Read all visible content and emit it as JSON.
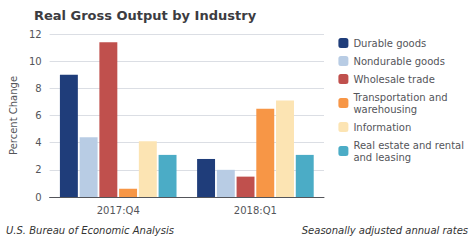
{
  "chart_data": {
    "type": "bar",
    "title": "Real Gross Output by Industry",
    "ylabel": "Percent Change",
    "categories": [
      "2017:Q4",
      "2018:Q1"
    ],
    "series": [
      {
        "name": "Durable goods",
        "color": "#1f3d7a",
        "values": [
          9.0,
          2.8
        ]
      },
      {
        "name": "Nondurable goods",
        "color": "#b8cce4",
        "values": [
          4.4,
          2.0
        ]
      },
      {
        "name": "Wholesale trade",
        "color": "#c0504d",
        "values": [
          11.4,
          1.5
        ]
      },
      {
        "name": "Transportation and\nwarehousing",
        "color": "#f79646",
        "values": [
          0.6,
          6.5
        ]
      },
      {
        "name": "Information",
        "color": "#fce4b3",
        "values": [
          4.1,
          7.1
        ]
      },
      {
        "name": "Real estate and rental\nand leasing",
        "color": "#4bacc6",
        "values": [
          3.1,
          3.1
        ]
      }
    ],
    "ylim": [
      0,
      12
    ],
    "yticks": [
      0,
      2,
      4,
      6,
      8,
      10,
      12
    ],
    "grid": true,
    "legend": "right",
    "annotations": [
      "U.S. Bureau of Economic Analysis",
      "Seasonally adjusted annual rates"
    ]
  }
}
